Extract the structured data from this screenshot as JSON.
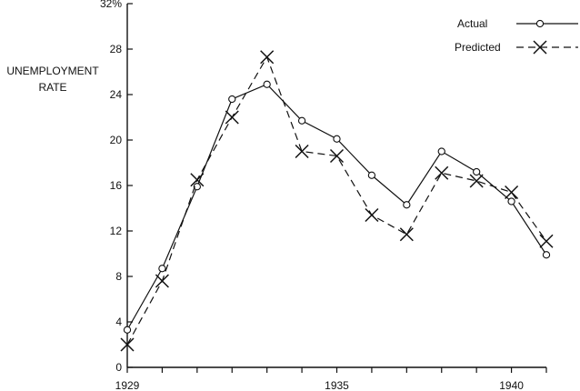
{
  "chart_data": {
    "type": "line",
    "title": "",
    "xlabel": "",
    "ylabel_lines": [
      "UNEMPLOYMENT",
      "RATE"
    ],
    "x": [
      1929,
      1930,
      1931,
      1932,
      1933,
      1934,
      1935,
      1936,
      1937,
      1938,
      1939,
      1940,
      1941
    ],
    "xlim": [
      1929,
      1941
    ],
    "ylim": [
      0,
      32
    ],
    "x_tick_labels": [
      {
        "value": 1929,
        "label": "1929"
      },
      {
        "value": 1935,
        "label": "1935"
      },
      {
        "value": 1940,
        "label": "1940"
      }
    ],
    "x_minor_ticks": [
      1930,
      1931,
      1932,
      1933,
      1934,
      1936,
      1937,
      1938,
      1939,
      1941
    ],
    "y_tick_labels": [
      {
        "value": 0,
        "label": "0"
      },
      {
        "value": 4,
        "label": "4"
      },
      {
        "value": 8,
        "label": "8"
      },
      {
        "value": 12,
        "label": "12"
      },
      {
        "value": 16,
        "label": "16"
      },
      {
        "value": 20,
        "label": "20"
      },
      {
        "value": 24,
        "label": "24"
      },
      {
        "value": 28,
        "label": "28"
      },
      {
        "value": 32,
        "label": "32%"
      }
    ],
    "grid": false,
    "legend_position": "top-right",
    "series": [
      {
        "name": "Actual",
        "marker": "circle",
        "line": "solid",
        "values": [
          3.3,
          8.7,
          15.9,
          23.6,
          24.9,
          21.7,
          20.1,
          16.9,
          14.3,
          19.0,
          17.2,
          14.6,
          9.9
        ]
      },
      {
        "name": "Predicted",
        "marker": "x",
        "line": "dashed",
        "values": [
          2.0,
          7.6,
          16.5,
          22.0,
          27.3,
          19.0,
          18.6,
          13.4,
          11.7,
          17.1,
          16.4,
          15.4,
          11.1
        ]
      }
    ]
  }
}
